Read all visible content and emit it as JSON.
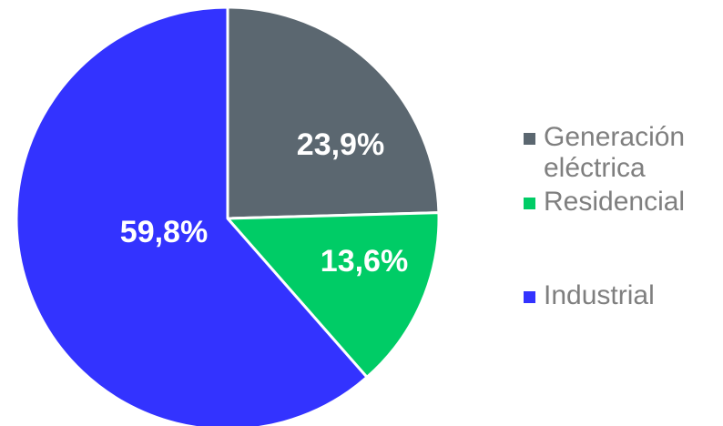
{
  "chart_data": {
    "type": "pie",
    "categories": [
      "Generación eléctrica",
      "Residencial",
      "Industrial"
    ],
    "values": [
      23.9,
      13.6,
      59.8
    ],
    "data_labels": [
      "23,9%",
      "13,6%",
      "59,8%"
    ],
    "colors": [
      "#5b6770",
      "#00cc66",
      "#3333ff"
    ],
    "legend": {
      "placement": "right",
      "entries": [
        {
          "lines": [
            "Generación",
            "eléctrica"
          ],
          "color": "#5b6770"
        },
        {
          "lines": [
            "Residencial"
          ],
          "color": "#00cc66"
        },
        {
          "lines": [
            "Industrial"
          ],
          "color": "#3333ff"
        }
      ]
    },
    "title": "",
    "start_angle_deg": 0,
    "direction": "clockwise"
  }
}
